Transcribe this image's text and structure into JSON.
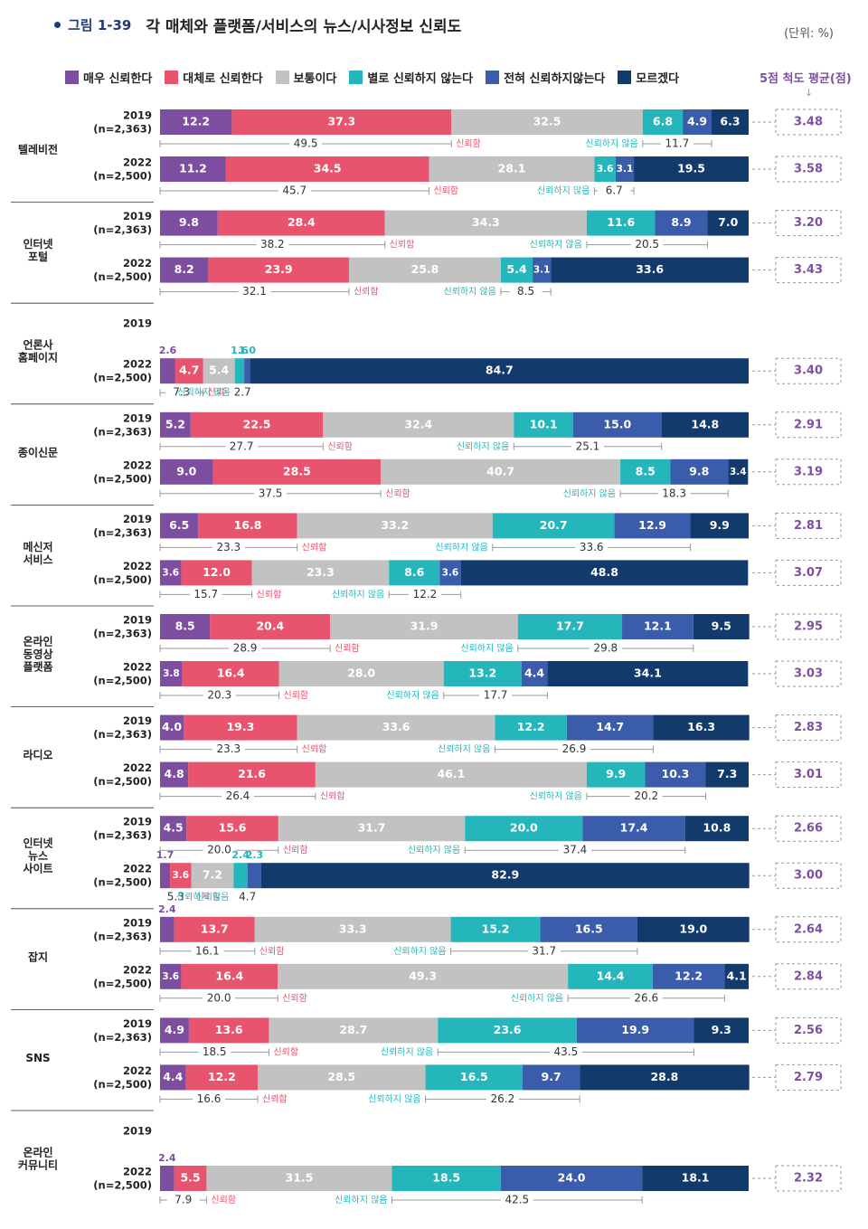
{
  "figure": {
    "label": "그림 1-39",
    "title": "각 매체와 플랫폼/서비스의 뉴스/시사정보 신뢰도",
    "unit": "(단위: %)",
    "avg_header": "5점 척도 평균(점)",
    "trust_label": "신뢰함",
    "distrust_label": "신뢰하지 않음"
  },
  "colors": {
    "very_trust": "#7d4ea0",
    "trust": "#e8546d",
    "neutral": "#c2c2c2",
    "not_trust": "#25b6bc",
    "not_at_all": "#3b5bab",
    "dont_know": "#123a6b",
    "avg_text": "#7f4fa0",
    "guide": "#999999"
  },
  "chart_data": {
    "type": "bar",
    "orientation": "horizontal-stacked-100",
    "title": "각 매체와 플랫폼/서비스의 뉴스/시사정보 신뢰도",
    "unit": "%",
    "legend": [
      "매우 신뢰한다",
      "대체로 신뢰한다",
      "보통이다",
      "별로 신뢰하지 않는다",
      "전혀 신뢰하지않는다",
      "모르겠다"
    ],
    "groups": [
      {
        "name": "텔레비전",
        "rows": [
          {
            "year": "2019",
            "n": "(n=2,363)",
            "values": [
              12.2,
              37.3,
              32.5,
              6.8,
              4.9,
              6.3
            ],
            "trust": 49.5,
            "distrust": 11.7,
            "avg": "3.48"
          },
          {
            "year": "2022",
            "n": "(n=2,500)",
            "values": [
              11.2,
              34.5,
              28.1,
              3.6,
              3.1,
              19.5
            ],
            "trust": 45.7,
            "distrust": 6.7,
            "avg": "3.58"
          }
        ]
      },
      {
        "name": "인터넷 포털",
        "rows": [
          {
            "year": "2019",
            "n": "(n=2,363)",
            "values": [
              9.8,
              28.4,
              34.3,
              11.6,
              8.9,
              7.0
            ],
            "trust": 38.2,
            "distrust": 20.5,
            "avg": "3.20"
          },
          {
            "year": "2022",
            "n": "(n=2,500)",
            "values": [
              8.2,
              23.9,
              25.8,
              5.4,
              3.1,
              33.6
            ],
            "trust": 32.1,
            "distrust": 8.5,
            "avg": "3.43"
          }
        ]
      },
      {
        "name": "언론사 홈페이지",
        "rows": [
          {
            "year": "2019",
            "n": "",
            "values": null
          },
          {
            "year": "2022",
            "n": "(n=2,500)",
            "values": [
              2.6,
              4.7,
              5.4,
              1.6,
              1.0,
              84.7
            ],
            "trust": 7.3,
            "distrust": 2.7,
            "avg": "3.40"
          }
        ]
      },
      {
        "name": "종이신문",
        "rows": [
          {
            "year": "2019",
            "n": "(n=2,363)",
            "values": [
              5.2,
              22.5,
              32.4,
              10.1,
              15.0,
              14.8
            ],
            "trust": 27.7,
            "distrust": 25.1,
            "avg": "2.91"
          },
          {
            "year": "2022",
            "n": "(n=2,500)",
            "values": [
              9.0,
              28.5,
              40.7,
              8.5,
              9.8,
              3.4
            ],
            "trust": 37.5,
            "distrust": 18.3,
            "avg": "3.19"
          }
        ]
      },
      {
        "name": "메신저 서비스",
        "rows": [
          {
            "year": "2019",
            "n": "(n=2,363)",
            "values": [
              6.5,
              16.8,
              33.2,
              20.7,
              12.9,
              9.9
            ],
            "trust": 23.3,
            "distrust": 33.6,
            "avg": "2.81"
          },
          {
            "year": "2022",
            "n": "(n=2,500)",
            "values": [
              3.6,
              12.0,
              23.3,
              8.6,
              3.6,
              48.8
            ],
            "trust": 15.7,
            "distrust": 12.2,
            "avg": "3.07"
          }
        ]
      },
      {
        "name": "온라인 동영상 플랫폼",
        "rows": [
          {
            "year": "2019",
            "n": "(n=2,363)",
            "values": [
              8.5,
              20.4,
              31.9,
              17.7,
              12.1,
              9.5
            ],
            "trust": 28.9,
            "distrust": 29.8,
            "avg": "2.95"
          },
          {
            "year": "2022",
            "n": "(n=2,500)",
            "values": [
              3.8,
              16.4,
              28.0,
              13.2,
              4.4,
              34.1
            ],
            "trust": 20.3,
            "distrust": 17.7,
            "avg": "3.03"
          }
        ]
      },
      {
        "name": "라디오",
        "rows": [
          {
            "year": "2019",
            "n": "(n=2,363)",
            "values": [
              4.0,
              19.3,
              33.6,
              12.2,
              14.7,
              16.3
            ],
            "trust": 23.3,
            "distrust": 26.9,
            "avg": "2.83"
          },
          {
            "year": "2022",
            "n": "(n=2,500)",
            "values": [
              4.8,
              21.6,
              46.1,
              9.9,
              10.3,
              7.3
            ],
            "trust": 26.4,
            "distrust": 20.2,
            "avg": "3.01"
          }
        ]
      },
      {
        "name": "인터넷 뉴스 사이트",
        "rows": [
          {
            "year": "2019",
            "n": "(n=2,363)",
            "values": [
              4.5,
              15.6,
              31.7,
              20.0,
              17.4,
              10.8
            ],
            "trust": 20.0,
            "distrust": 37.4,
            "avg": "2.66"
          },
          {
            "year": "2022",
            "n": "(n=2,500)",
            "values": [
              1.7,
              3.6,
              7.2,
              2.4,
              2.3,
              82.9
            ],
            "trust": 5.3,
            "distrust": 4.7,
            "avg": "3.00"
          }
        ]
      },
      {
        "name": "잡지",
        "rows": [
          {
            "year": "2019",
            "n": "(n=2,363)",
            "values": [
              2.4,
              13.7,
              33.3,
              15.2,
              16.5,
              19.0
            ],
            "trust": 16.1,
            "distrust": 31.7,
            "avg": "2.64"
          },
          {
            "year": "2022",
            "n": "(n=2,500)",
            "values": [
              3.6,
              16.4,
              49.3,
              14.4,
              12.2,
              4.1
            ],
            "trust": 20.0,
            "distrust": 26.6,
            "avg": "2.84"
          }
        ]
      },
      {
        "name": "SNS",
        "rows": [
          {
            "year": "2019",
            "n": "(n=2,363)",
            "values": [
              4.9,
              13.6,
              28.7,
              23.6,
              19.9,
              9.3
            ],
            "trust": 18.5,
            "distrust": 43.5,
            "avg": "2.56"
          },
          {
            "year": "2022",
            "n": "(n=2,500)",
            "values": [
              4.4,
              12.2,
              28.5,
              16.5,
              9.7,
              28.8
            ],
            "trust": 16.6,
            "distrust": 26.2,
            "avg": "2.79"
          }
        ]
      },
      {
        "name": "온라인 커뮤니티",
        "rows": [
          {
            "year": "2019",
            "n": "",
            "values": null
          },
          {
            "year": "2022",
            "n": "(n=2,500)",
            "values": [
              2.4,
              5.5,
              31.5,
              18.5,
              24.0,
              18.1
            ],
            "trust": 7.9,
            "distrust": 42.5,
            "avg": "2.32"
          }
        ]
      }
    ]
  }
}
